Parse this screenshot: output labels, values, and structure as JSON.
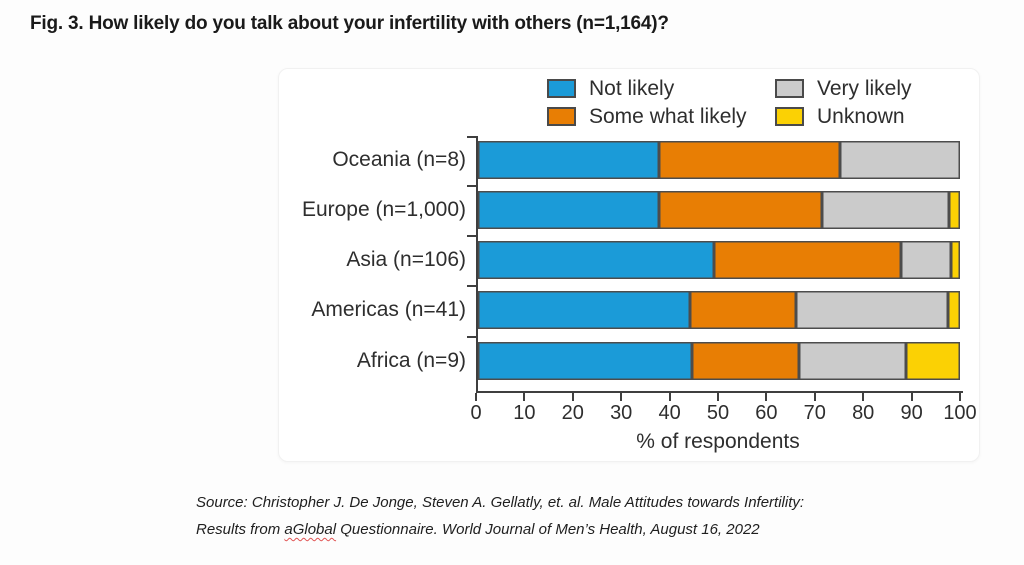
{
  "page": {
    "title": "Fig. 3. How likely do you talk about your infertility with others (n=1,164)?",
    "source_line1": "Source: Christopher J. De Jonge, Steven A. Gellatly, et. al. Male Attitudes towards Infertility:",
    "source_line2_prefix": "Results from ",
    "source_line2_misspelled": "aGlobal",
    "source_line2_suffix": " Questionnaire. World Journal of Men’s Health, August 16, 2022"
  },
  "chart_data": {
    "type": "bar",
    "orientation": "horizontal",
    "stacked": true,
    "title": "How likely do you talk about your infertility with others (n=1,164)?",
    "categories": [
      "Oceania (n=8)",
      "Europe (n=1,000)",
      "Asia (n=106)",
      "Americas (n=41)",
      "Africa (n=9)"
    ],
    "series": [
      {
        "name": "Not likely",
        "color": "#1b9bd8",
        "values": [
          37.5,
          37.5,
          49.1,
          43.9,
          44.4
        ]
      },
      {
        "name": "Some what likely",
        "color": "#e87e04",
        "values": [
          37.5,
          33.8,
          38.7,
          22.0,
          22.2
        ]
      },
      {
        "name": "Very likely",
        "color": "#cbcbcb",
        "values": [
          25.0,
          26.4,
          10.4,
          31.7,
          22.2
        ]
      },
      {
        "name": "Unknown",
        "color": "#fbd104",
        "values": [
          0.0,
          2.3,
          1.9,
          2.4,
          11.1
        ]
      }
    ],
    "xlabel": "% of respondents",
    "xlim": [
      0,
      100
    ],
    "xticks": [
      0,
      10,
      20,
      30,
      40,
      50,
      60,
      70,
      80,
      90,
      100
    ],
    "legend_position": "top",
    "legend_columns": 2,
    "grid": false,
    "segment_border_color": "#4c4c4c",
    "axis_color": "#3f3f3f"
  }
}
